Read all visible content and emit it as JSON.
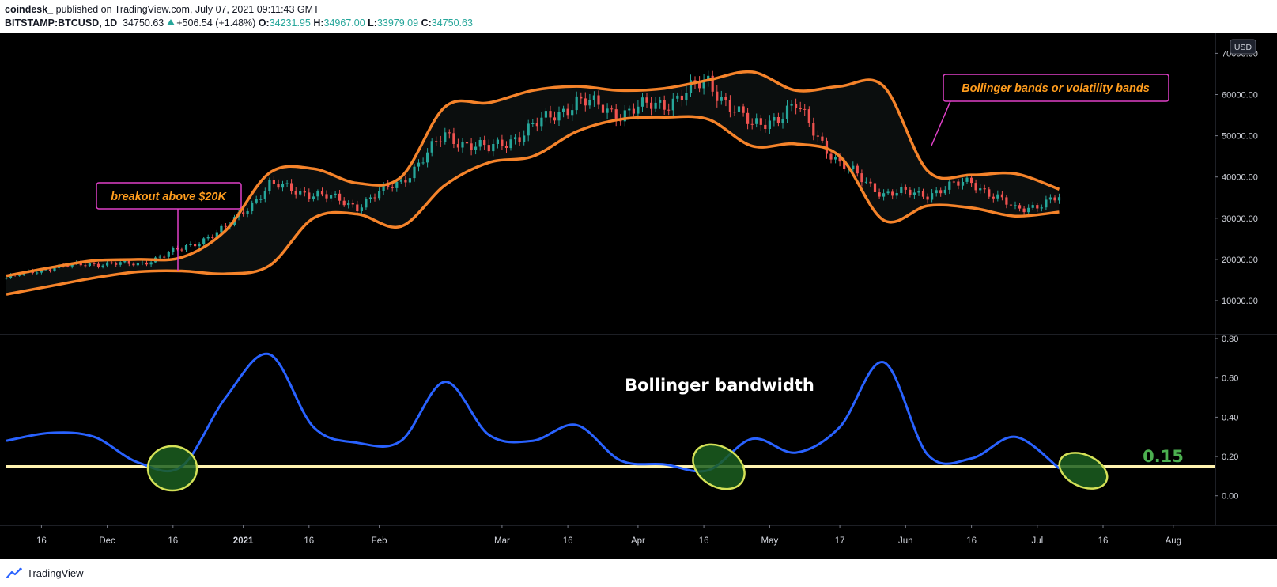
{
  "header": {
    "author": "coindesk_",
    "published_text": "published on TradingView.com, July 07, 2021 09:11:43 GMT",
    "symbol": "BITSTAMP:BTCUSD, 1D",
    "last": "34750.63",
    "change": "+506.54 (+1.48%)",
    "open_label": "O:",
    "open": "34231.95",
    "high_label": "H:",
    "high": "34967.00",
    "low_label": "L:",
    "low": "33979.09",
    "close_label": "C:",
    "close": "34750.63"
  },
  "footer": {
    "brand": "TradingView"
  },
  "colors": {
    "background": "#000000",
    "bands": "#f5832a",
    "bandwidth": "#2962ff",
    "up": "#26a69a",
    "down": "#ef5350",
    "threshold": "#fff3b0",
    "annotation_border": "#e040c8",
    "annotation_text": "#ff9d1e",
    "ellipse_fill": "#1b5e20",
    "ellipse_border": "#d4e157"
  },
  "chart_data": [
    {
      "type": "candlestick",
      "currency": "USD",
      "ylim": [
        5000,
        72000
      ],
      "yticks": [
        "10000.00",
        "20000.00",
        "30000.00",
        "40000.00",
        "50000.00",
        "60000.00",
        "70000.00"
      ],
      "x": [
        "2020-11-08",
        "2020-11-18",
        "2020-11-28",
        "2020-12-08",
        "2020-12-18",
        "2020-12-28",
        "2021-01-07",
        "2021-01-17",
        "2021-01-27",
        "2021-02-06",
        "2021-02-16",
        "2021-02-26",
        "2021-03-08",
        "2021-03-18",
        "2021-03-28",
        "2021-04-07",
        "2021-04-17",
        "2021-04-27",
        "2021-05-07",
        "2021-05-17",
        "2021-05-27",
        "2021-06-06",
        "2021-06-16",
        "2021-06-26",
        "2021-07-06"
      ],
      "upper_band": [
        16000,
        18000,
        19700,
        20000,
        20500,
        27000,
        41000,
        42000,
        38500,
        40000,
        57000,
        58000,
        61000,
        62000,
        61000,
        61500,
        63500,
        65500,
        61000,
        62000,
        62000,
        41500,
        40500,
        40800,
        37000
      ],
      "lower_band": [
        11500,
        13500,
        15500,
        17000,
        17200,
        16500,
        18500,
        30000,
        31000,
        28000,
        38000,
        43500,
        45000,
        51000,
        54000,
        54500,
        54000,
        47500,
        48000,
        45000,
        29500,
        33000,
        32500,
        30500,
        31500
      ],
      "close": [
        15500,
        18000,
        19000,
        18800,
        22500,
        27500,
        38000,
        36000,
        33000,
        39000,
        50000,
        46500,
        52000,
        58500,
        55500,
        58000,
        63000,
        52000,
        57000,
        43000,
        36000,
        36000,
        39000,
        32000,
        34750
      ]
    },
    {
      "type": "line",
      "name": "Bollinger bandwidth",
      "ylim": [
        -0.15,
        0.8
      ],
      "yticks": [
        "0.00",
        "0.20",
        "0.40",
        "0.60",
        "0.80"
      ],
      "x": [
        "2020-11-08",
        "2020-11-18",
        "2020-11-28",
        "2020-12-08",
        "2020-12-18",
        "2020-12-28",
        "2021-01-07",
        "2021-01-17",
        "2021-01-27",
        "2021-02-06",
        "2021-02-16",
        "2021-02-26",
        "2021-03-08",
        "2021-03-18",
        "2021-03-28",
        "2021-04-07",
        "2021-04-17",
        "2021-04-27",
        "2021-05-07",
        "2021-05-17",
        "2021-05-27",
        "2021-06-06",
        "2021-06-16",
        "2021-06-26",
        "2021-07-06"
      ],
      "values": [
        0.28,
        0.32,
        0.3,
        0.17,
        0.15,
        0.5,
        0.72,
        0.35,
        0.27,
        0.28,
        0.58,
        0.31,
        0.28,
        0.36,
        0.18,
        0.16,
        0.13,
        0.29,
        0.22,
        0.35,
        0.68,
        0.21,
        0.19,
        0.3,
        0.14
      ],
      "threshold": 0.15,
      "threshold_label": "0.15"
    }
  ],
  "xaxis": {
    "ticks": [
      {
        "label": "16",
        "date": "2020-11-16"
      },
      {
        "label": "Dec",
        "date": "2020-12-01"
      },
      {
        "label": "16",
        "date": "2020-12-16"
      },
      {
        "label": "2021",
        "date": "2021-01-01"
      },
      {
        "label": "16",
        "date": "2021-01-16"
      },
      {
        "label": "Feb",
        "date": "2021-02-01"
      },
      {
        "label": "Mar",
        "date": "2021-03-01"
      },
      {
        "label": "16",
        "date": "2021-03-16"
      },
      {
        "label": "Apr",
        "date": "2021-04-01"
      },
      {
        "label": "16",
        "date": "2021-04-16"
      },
      {
        "label": "May",
        "date": "2021-05-01"
      },
      {
        "label": "17",
        "date": "2021-05-17"
      },
      {
        "label": "Jun",
        "date": "2021-06-01"
      },
      {
        "label": "16",
        "date": "2021-06-16"
      },
      {
        "label": "Jul",
        "date": "2021-07-01"
      },
      {
        "label": "16",
        "date": "2021-07-16"
      },
      {
        "label": "Aug",
        "date": "2021-08-01"
      }
    ]
  },
  "annotations": {
    "breakout": "breakout above $20K",
    "bands": "Bollinger bands or volatility bands",
    "bandwidth_title": "Bollinger bandwidth"
  }
}
